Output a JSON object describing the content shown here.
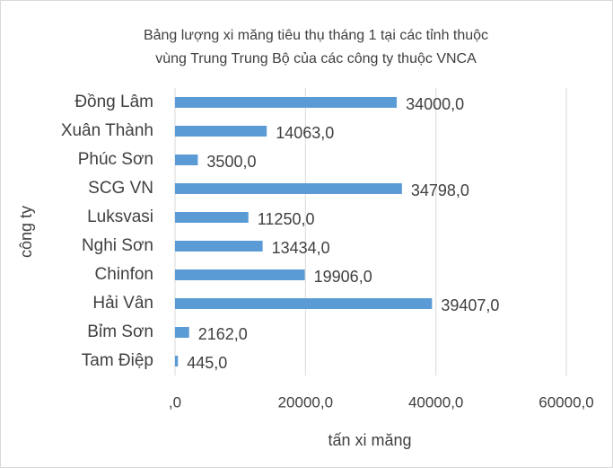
{
  "chart_data": {
    "type": "bar",
    "orientation": "horizontal",
    "title_lines": [
      "Bảng lượng xi măng tiêu thụ tháng 1 tại các tỉnh thuộc",
      "vùng Trung Trung Bộ của các công ty thuộc VNCA"
    ],
    "x_label": "tấn xi măng",
    "y_label": "công ty",
    "categories": [
      "Đồng Lâm",
      "Xuân Thành",
      "Phúc Sơn",
      "SCG VN",
      "Luksvasi",
      "Nghi Sơn",
      "Chinfon",
      "Hải Vân",
      "Bỉm Sơn",
      "Tam Điệp"
    ],
    "values": [
      34000,
      14063,
      3500,
      34798,
      11250,
      13434,
      19906,
      39407,
      2162,
      445
    ],
    "value_labels": [
      "34000,0",
      "14063,0",
      "3500,0",
      "34798,0",
      "11250,0",
      "13434,0",
      "19906,0",
      "39407,0",
      "2162,0",
      "445,0"
    ],
    "color": "#5b9bd5",
    "xlim": [
      0,
      60000
    ],
    "xticks": [
      {
        "value": 0,
        "label": ",0"
      },
      {
        "value": 20000,
        "label": "20000,0"
      },
      {
        "value": 40000,
        "label": "40000,0"
      },
      {
        "value": 60000,
        "label": "60000,0"
      }
    ],
    "grid": true
  }
}
